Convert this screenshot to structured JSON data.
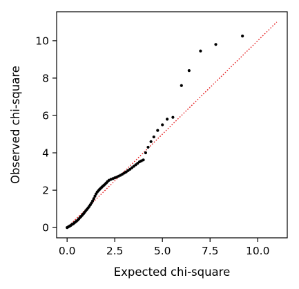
{
  "chart_data": {
    "type": "scatter",
    "title": "",
    "xlabel": "Expected chi-square",
    "ylabel": "Observed chi-square",
    "xlim": [
      -0.55,
      11.55
    ],
    "ylim": [
      -0.55,
      11.55
    ],
    "xticks": [
      0.0,
      2.5,
      5.0,
      7.5,
      10.0
    ],
    "xtick_labels": [
      "0.0",
      "2.5",
      "5.0",
      "7.5",
      "10.0"
    ],
    "yticks": [
      0,
      2,
      4,
      6,
      8,
      10
    ],
    "ytick_labels": [
      "0",
      "2",
      "4",
      "6",
      "8",
      "10"
    ],
    "grid": false,
    "marker_color": "#000000",
    "reference_line": {
      "style": "dotted",
      "color": "#e41a1c",
      "from": [
        0,
        0
      ],
      "to": [
        11,
        11
      ]
    },
    "points": [
      [
        0.0,
        0.0
      ],
      [
        0.05,
        0.03
      ],
      [
        0.1,
        0.06
      ],
      [
        0.15,
        0.09
      ],
      [
        0.2,
        0.12
      ],
      [
        0.26,
        0.17
      ],
      [
        0.32,
        0.2
      ],
      [
        0.38,
        0.25
      ],
      [
        0.44,
        0.3
      ],
      [
        0.5,
        0.35
      ],
      [
        0.56,
        0.4
      ],
      [
        0.62,
        0.47
      ],
      [
        0.68,
        0.54
      ],
      [
        0.74,
        0.6
      ],
      [
        0.8,
        0.67
      ],
      [
        0.86,
        0.74
      ],
      [
        0.92,
        0.82
      ],
      [
        0.98,
        0.9
      ],
      [
        1.04,
        0.97
      ],
      [
        1.1,
        1.05
      ],
      [
        1.16,
        1.13
      ],
      [
        1.22,
        1.22
      ],
      [
        1.28,
        1.32
      ],
      [
        1.34,
        1.43
      ],
      [
        1.4,
        1.55
      ],
      [
        1.46,
        1.68
      ],
      [
        1.52,
        1.8
      ],
      [
        1.58,
        1.9
      ],
      [
        1.64,
        1.97
      ],
      [
        1.7,
        2.04
      ],
      [
        1.76,
        2.1
      ],
      [
        1.82,
        2.16
      ],
      [
        1.88,
        2.22
      ],
      [
        1.94,
        2.27
      ],
      [
        2.0,
        2.33
      ],
      [
        2.06,
        2.39
      ],
      [
        2.12,
        2.46
      ],
      [
        2.2,
        2.53
      ],
      [
        2.3,
        2.58
      ],
      [
        2.4,
        2.62
      ],
      [
        2.5,
        2.66
      ],
      [
        2.6,
        2.7
      ],
      [
        2.7,
        2.75
      ],
      [
        2.8,
        2.8
      ],
      [
        2.9,
        2.86
      ],
      [
        3.0,
        2.92
      ],
      [
        3.1,
        2.98
      ],
      [
        3.2,
        3.05
      ],
      [
        3.3,
        3.12
      ],
      [
        3.4,
        3.2
      ],
      [
        3.5,
        3.28
      ],
      [
        3.6,
        3.36
      ],
      [
        3.7,
        3.44
      ],
      [
        3.8,
        3.52
      ],
      [
        3.9,
        3.57
      ],
      [
        4.0,
        3.62
      ],
      [
        4.12,
        4.0
      ],
      [
        4.25,
        4.3
      ],
      [
        4.4,
        4.6
      ],
      [
        4.55,
        4.85
      ],
      [
        4.75,
        5.2
      ],
      [
        5.0,
        5.5
      ],
      [
        5.25,
        5.8
      ],
      [
        5.55,
        5.9
      ],
      [
        6.0,
        7.6
      ],
      [
        6.4,
        8.4
      ],
      [
        7.0,
        9.45
      ],
      [
        7.8,
        9.8
      ],
      [
        9.2,
        10.25
      ]
    ]
  }
}
